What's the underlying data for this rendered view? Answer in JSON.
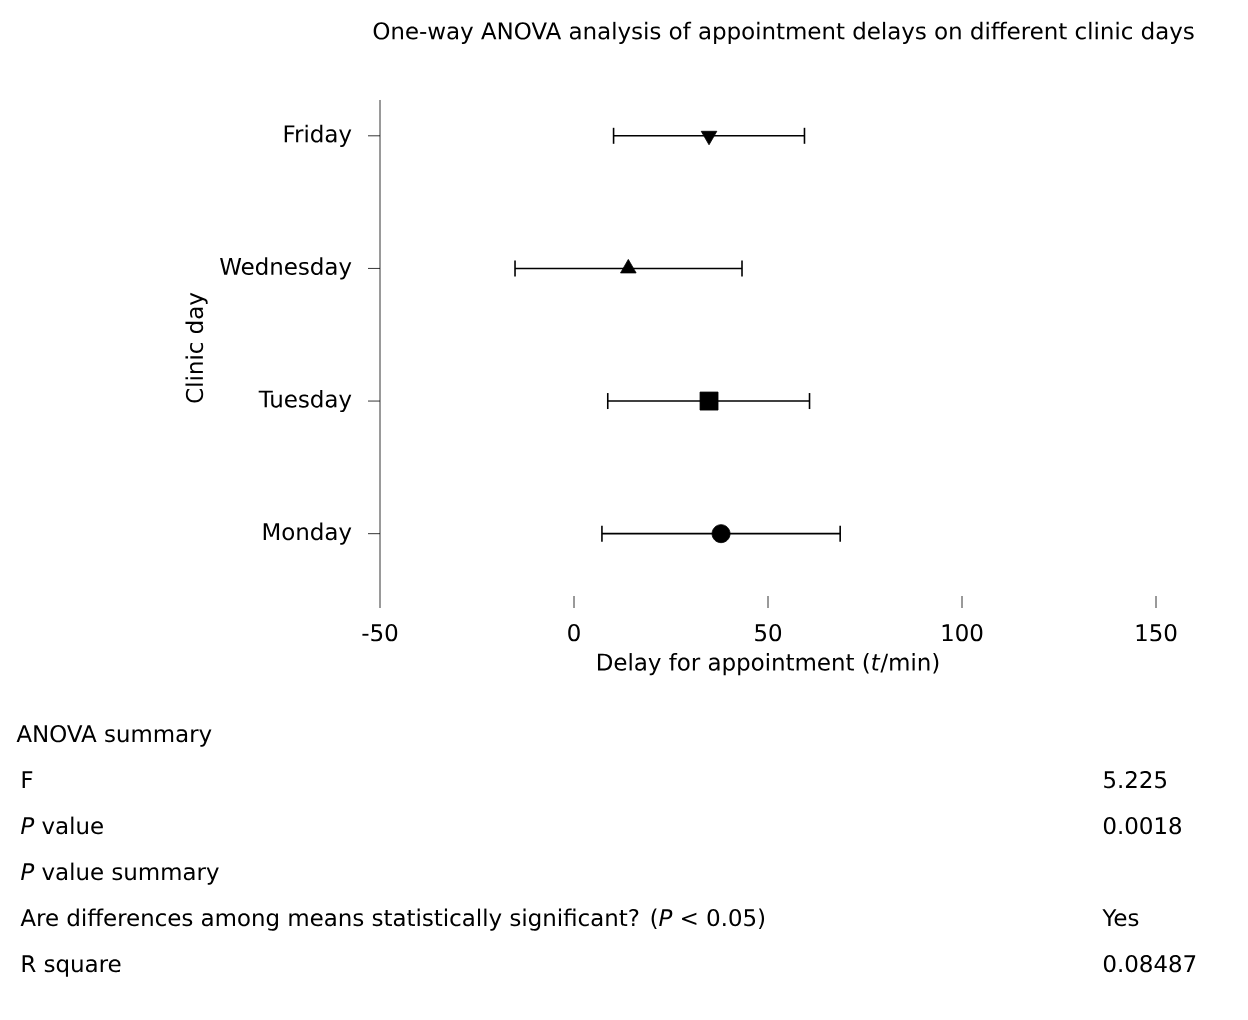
{
  "chart_data": {
    "type": "scatter",
    "orientation": "horizontal",
    "title": "One-way ANOVA analysis of appointment delays on different clinic days",
    "xlabel": "Delay for appointment (*t*/min)",
    "ylabel": "Clinic day",
    "categories": [
      "Friday",
      "Wednesday",
      "Tuesday",
      "Monday"
    ],
    "xlim": [
      -50,
      150
    ],
    "xticks": [
      -50,
      0,
      50,
      100,
      150
    ],
    "series": [
      {
        "color": "#000000",
        "marker": "triangle-down",
        "values": [
          34.8,
          null,
          null,
          null
        ],
        "errors": [
          [
            10.2,
            59.4
          ],
          null,
          null,
          null
        ]
      },
      {
        "color": "#000000",
        "marker": "triangle",
        "values": [
          null,
          14.0,
          null,
          null
        ],
        "errors": [
          null,
          [
            -15.2,
            43.3
          ],
          null,
          null
        ]
      },
      {
        "color": "#000000",
        "marker": "square",
        "values": [
          null,
          null,
          34.8,
          null
        ],
        "errors": [
          null,
          null,
          [
            8.7,
            60.7
          ],
          null
        ]
      },
      {
        "color": "#000000",
        "marker": "circle",
        "values": [
          null,
          null,
          null,
          37.9
        ],
        "errors": [
          null,
          null,
          null,
          [
            7.2,
            68.6
          ]
        ]
      }
    ],
    "grid": false,
    "annotations": [
      "ANOVA summary",
      "F",
      "5.225",
      "*P* value",
      "0.0018",
      "*P* value summary",
      "Are differences among means statistically significant? (*P* < 0.05)",
      "Yes",
      "R square",
      "0.08487"
    ]
  }
}
